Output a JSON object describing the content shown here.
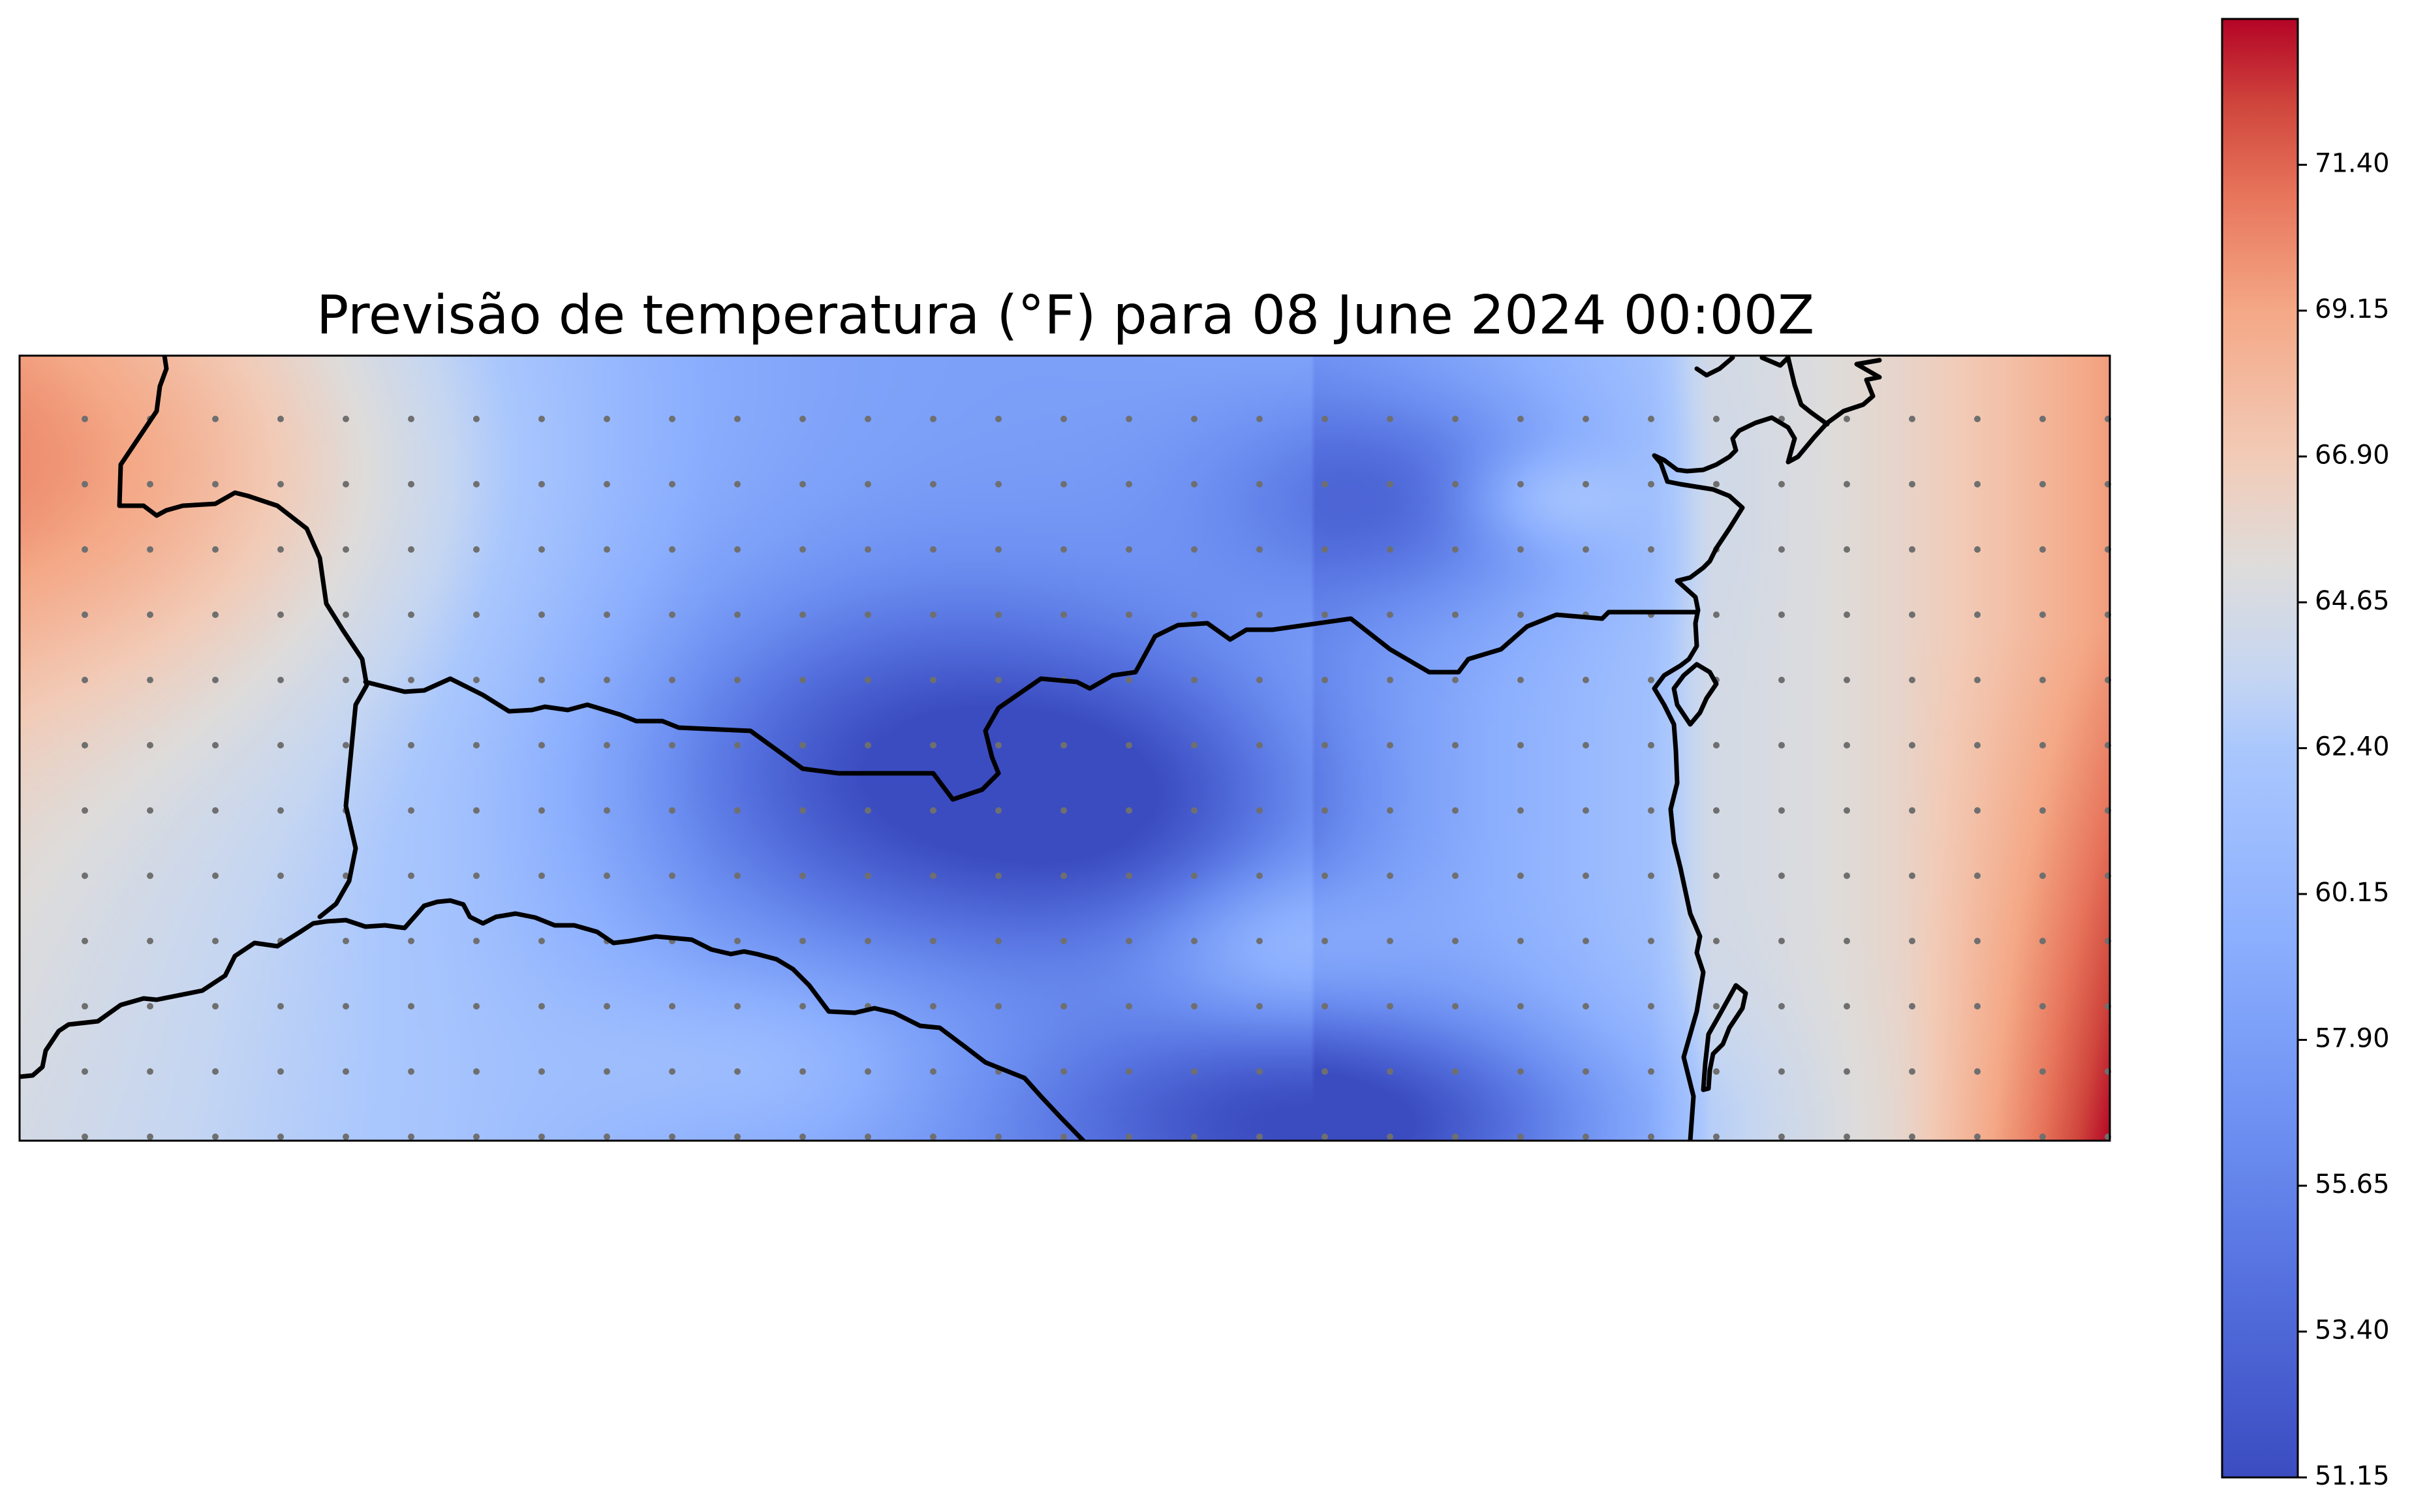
{
  "title": "Previsão de temperatura (°F) para 08 June 2024 00:00Z",
  "colormap": "coolwarm",
  "colors": {
    "cold": "#3b4cc0",
    "neutral": "#dddddd",
    "warm": "#b40426",
    "coastline": "#000000",
    "grid_point": "#6f6f6f"
  },
  "colorbar": {
    "min": 51.15,
    "max": 73.65,
    "ticks": [
      "51.15",
      "53.40",
      "55.65",
      "57.90",
      "60.15",
      "62.40",
      "64.65",
      "66.90",
      "69.15",
      "71.40"
    ],
    "orientation": "vertical",
    "placement": "right"
  },
  "grid_points": {
    "columns": 32,
    "rows": 12
  },
  "temperature_field_description_values": {
    "west_edge_approx": 65.5,
    "center_min_approx": 52.0,
    "south_center_min_approx": 51.5,
    "east_edge_max_approx": 73.5
  }
}
